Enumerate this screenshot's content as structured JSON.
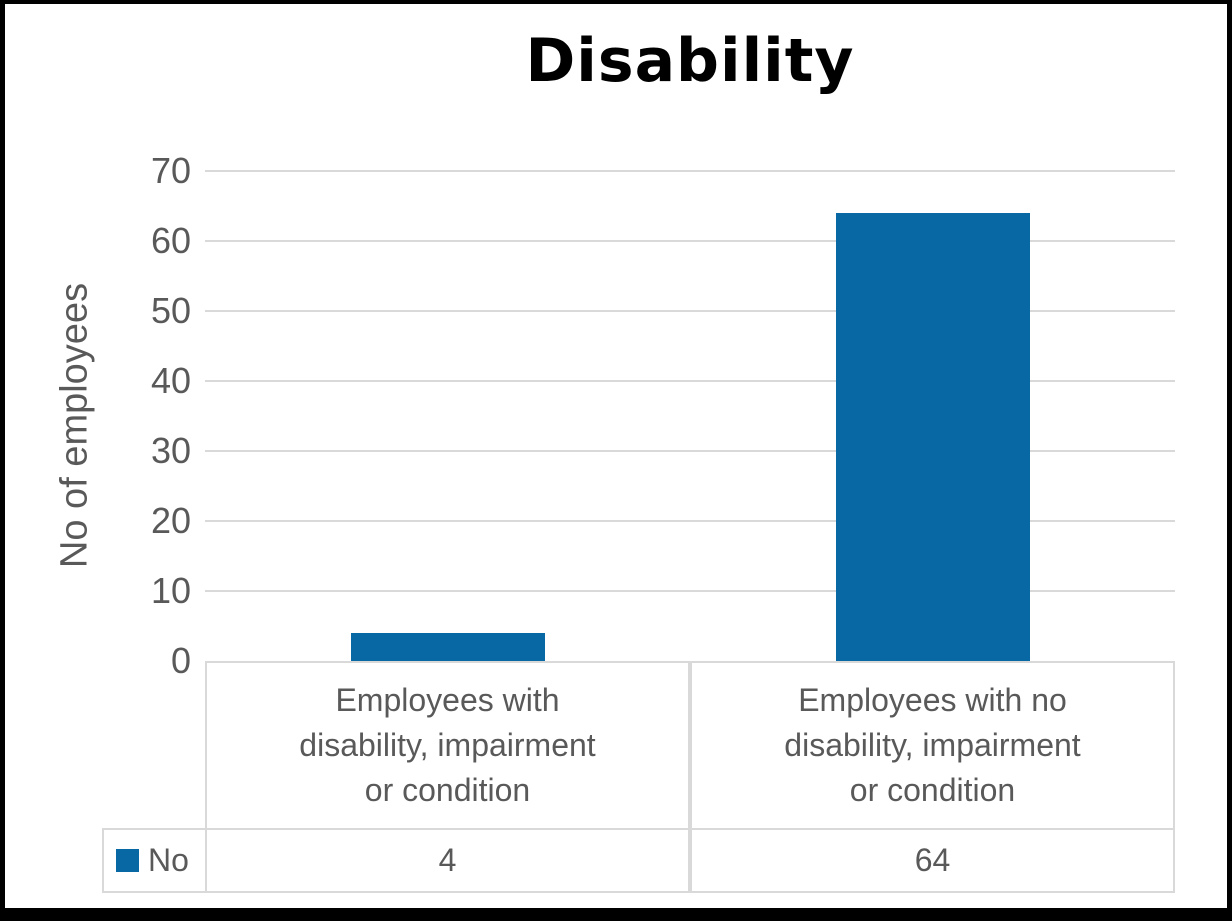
{
  "chart_data": {
    "type": "bar",
    "title": "Disability",
    "ylabel": "No of employees",
    "xlabel": "",
    "categories": [
      "Employees with disability, impairment or condition",
      "Employees with no disability, impairment or condition"
    ],
    "category_lines": [
      [
        "Employees with",
        "disability, impairment",
        "or condition"
      ],
      [
        "Employees with no",
        "disability, impairment",
        "or condition"
      ]
    ],
    "series": [
      {
        "name": "No",
        "values": [
          4,
          64
        ]
      }
    ],
    "ylim": [
      0,
      70
    ],
    "yticks": [
      0,
      10,
      20,
      30,
      40,
      50,
      60,
      70
    ],
    "grid": true,
    "legend_position": "data-table-left",
    "colors": {
      "bar": "#0768a4",
      "grid": "#d9d9d9",
      "table_border": "#d9d9d9",
      "axis_text": "#595959",
      "title_text": "#000000",
      "frame_border": "#000000",
      "background": "#ffffff"
    }
  }
}
